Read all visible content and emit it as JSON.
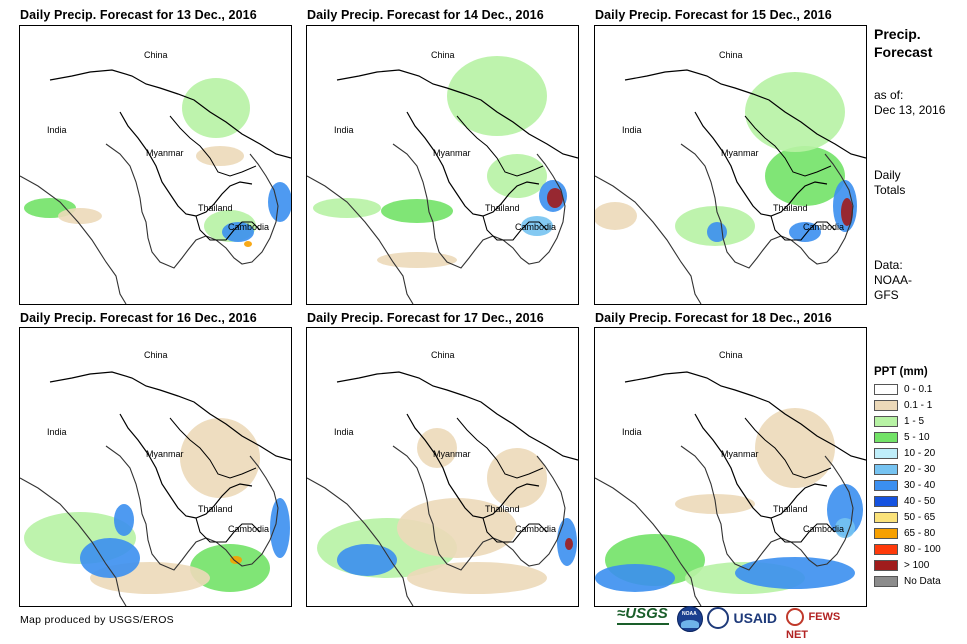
{
  "panels": [
    {
      "title": "Daily Precip. Forecast for 13 Dec., 2016",
      "labels": {
        "china": "China",
        "india": "India",
        "myanmar": "Myanmar",
        "thailand": "Thailand",
        "cambodia": "Cambodia"
      }
    },
    {
      "title": "Daily Precip. Forecast for 14 Dec., 2016",
      "labels": {
        "china": "China",
        "india": "India",
        "myanmar": "Myanmar",
        "thailand": "Thailand",
        "cambodia": "Cambodia"
      }
    },
    {
      "title": "Daily Precip. Forecast for 15 Dec., 2016",
      "labels": {
        "china": "China",
        "india": "India",
        "myanmar": "Myanmar",
        "thailand": "Thailand",
        "cambodia": "Cambodia"
      }
    },
    {
      "title": "Daily Precip. Forecast for 16 Dec., 2016",
      "labels": {
        "china": "China",
        "india": "India",
        "myanmar": "Myanmar",
        "thailand": "Thailand",
        "cambodia": "Cambodia"
      }
    },
    {
      "title": "Daily Precip. Forecast for 17 Dec., 2016",
      "labels": {
        "china": "China",
        "india": "India",
        "myanmar": "Myanmar",
        "thailand": "Thailand",
        "cambodia": "Cambodia"
      }
    },
    {
      "title": "Daily Precip. Forecast for 18 Dec., 2016",
      "labels": {
        "china": "China",
        "india": "India",
        "myanmar": "Myanmar",
        "thailand": "Thailand",
        "cambodia": "Cambodia"
      }
    }
  ],
  "side": {
    "title_line1": "Precip.",
    "title_line2": "Forecast",
    "asof_line1": "as of:",
    "asof_line2": "Dec 13, 2016",
    "totals_line1": "Daily",
    "totals_line2": "Totals",
    "data_line1": "Data:",
    "data_line2": "NOAA-",
    "data_line3": "GFS"
  },
  "legend": {
    "title": "PPT (mm)",
    "items": [
      {
        "label": "0 - 0.1",
        "color": "#ffffff"
      },
      {
        "label": "0.1 - 1",
        "color": "#ecd9b9"
      },
      {
        "label": "1 - 5",
        "color": "#b7f2a4"
      },
      {
        "label": "5 - 10",
        "color": "#72e267"
      },
      {
        "label": "10 - 20",
        "color": "#bfeefa"
      },
      {
        "label": "20 - 30",
        "color": "#76c3f1"
      },
      {
        "label": "30 - 40",
        "color": "#3b8ff0"
      },
      {
        "label": "40 - 50",
        "color": "#1452e0"
      },
      {
        "label": "50 - 65",
        "color": "#fae27a"
      },
      {
        "label": "65 - 80",
        "color": "#f7a000"
      },
      {
        "label": "80 - 100",
        "color": "#ff3a0a"
      },
      {
        "label": "> 100",
        "color": "#a01c1c"
      },
      {
        "label": "No Data",
        "color": "#8c8c8c"
      }
    ]
  },
  "credit": "Map produced by USGS/EROS",
  "logos": [
    {
      "text": "≈USGS",
      "icon": "usgs-logo"
    },
    {
      "text": "NOAA",
      "icon": "noaa-logo"
    },
    {
      "text": "USAID",
      "icon": "usaid-logo"
    },
    {
      "text": "FEWS NET",
      "icon": "fewsnet-logo"
    }
  ]
}
